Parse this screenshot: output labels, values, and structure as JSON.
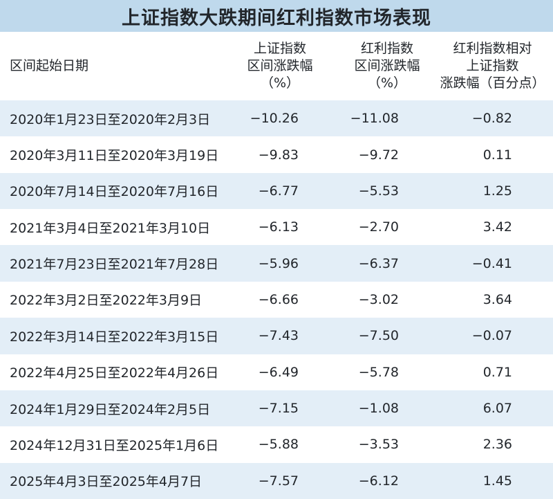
{
  "title": "上证指数大跌期间红利指数市场表现",
  "header": {
    "date": "区间起始日期",
    "shanghai": [
      "上证指数",
      "区间涨跌幅",
      "（%）"
    ],
    "dividend": [
      "红利指数",
      "区间涨跌幅",
      "（%）"
    ],
    "relative": [
      "红利指数相对",
      "上证指数",
      "涨跌幅（百分点）"
    ]
  },
  "colors": {
    "title_bg": "#bfd9ec",
    "stripe": "#e3eef7",
    "text": "#22262b"
  },
  "rows": [
    {
      "date": "2020年1月23日至2020年2月3日",
      "shanghai": "−10.26",
      "dividend": "−11.08",
      "relative": "−0.82"
    },
    {
      "date": "2020年3月11日至2020年3月19日",
      "shanghai": "−9.83",
      "dividend": "−9.72",
      "relative": "0.11"
    },
    {
      "date": "2020年7月14日至2020年7月16日",
      "shanghai": "−6.77",
      "dividend": "−5.53",
      "relative": "1.25"
    },
    {
      "date": "2021年3月4日至2021年3月10日",
      "shanghai": "−6.13",
      "dividend": "−2.70",
      "relative": "3.42"
    },
    {
      "date": "2021年7月23日至2021年7月28日",
      "shanghai": "−5.96",
      "dividend": "−6.37",
      "relative": "−0.41"
    },
    {
      "date": "2022年3月2日至2022年3月9日",
      "shanghai": "−6.66",
      "dividend": "−3.02",
      "relative": "3.64"
    },
    {
      "date": "2022年3月14日至2022年3月15日",
      "shanghai": "−7.43",
      "dividend": "−7.50",
      "relative": "−0.07"
    },
    {
      "date": "2022年4月25日至2022年4月26日",
      "shanghai": "−6.49",
      "dividend": "−5.78",
      "relative": "0.71"
    },
    {
      "date": "2024年1月29日至2024年2月5日",
      "shanghai": "−7.15",
      "dividend": "−1.08",
      "relative": "6.07"
    },
    {
      "date": "2024年12月31日至2025年1月6日",
      "shanghai": "−5.88",
      "dividend": "−3.53",
      "relative": "2.36"
    },
    {
      "date": "2025年4月3日至2025年4月7日",
      "shanghai": "−7.57",
      "dividend": "−6.12",
      "relative": "1.45"
    }
  ]
}
